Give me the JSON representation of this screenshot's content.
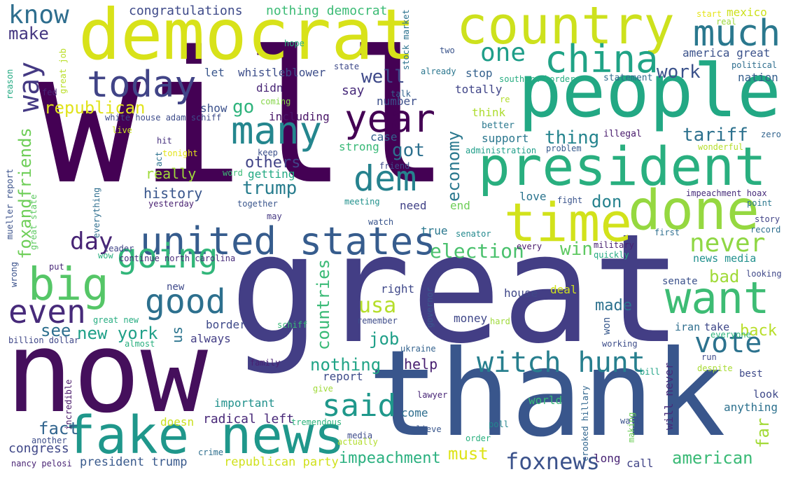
{
  "words": [
    {
      "text": "will",
      "color": "#440154"
    },
    {
      "text": "great",
      "color": "#433e85"
    },
    {
      "text": "now",
      "color": "#450f5c"
    },
    {
      "text": "thank",
      "color": "#39568c"
    },
    {
      "text": "people",
      "color": "#22a884"
    },
    {
      "text": "democrat",
      "color": "#d8e219"
    },
    {
      "text": "president",
      "color": "#29af7f"
    },
    {
      "text": "country",
      "color": "#cde11d"
    },
    {
      "text": "fake news",
      "color": "#1f978b"
    },
    {
      "text": "done",
      "color": "#95d840"
    },
    {
      "text": "time",
      "color": "#d2e21b"
    },
    {
      "text": "united states",
      "color": "#365c8d"
    },
    {
      "text": "want",
      "color": "#3dbc74"
    },
    {
      "text": "big",
      "color": "#55c667"
    },
    {
      "text": "china",
      "color": "#20a386"
    },
    {
      "text": "much",
      "color": "#2a788e"
    },
    {
      "text": "year",
      "color": "#440154"
    },
    {
      "text": "today",
      "color": "#414487"
    },
    {
      "text": "many",
      "color": "#24868e"
    },
    {
      "text": "dem",
      "color": "#26828e"
    },
    {
      "text": "going",
      "color": "#32b67a"
    },
    {
      "text": "good",
      "color": "#2d708e"
    },
    {
      "text": "witch hunt",
      "color": "#277f8e"
    },
    {
      "text": "even",
      "color": "#472a7a"
    },
    {
      "text": "said",
      "color": "#1f988b"
    },
    {
      "text": "vote",
      "color": "#2c728e"
    },
    {
      "text": "one",
      "color": "#1f9e89"
    },
    {
      "text": "way",
      "color": "#443983"
    },
    {
      "text": "know",
      "color": "#2e6e8e"
    },
    {
      "text": "never",
      "color": "#8fd744"
    },
    {
      "text": "day",
      "color": "#482475"
    },
    {
      "text": "foxnews",
      "color": "#3b528b"
    },
    {
      "text": "usa",
      "color": "#b5de2b"
    },
    {
      "text": "election",
      "color": "#4ac16d"
    },
    {
      "text": "make",
      "color": "#453781"
    },
    {
      "text": "congratulations",
      "color": "#3e4a89"
    },
    {
      "text": "nothing democrat",
      "color": "#3bbb75"
    },
    {
      "text": "republican",
      "color": "#e1e31d"
    },
    {
      "text": "well",
      "color": "#3e4989"
    },
    {
      "text": "go",
      "color": "#2eb37c"
    },
    {
      "text": "thing",
      "color": "#25848e"
    },
    {
      "text": "tariff",
      "color": "#2d718e"
    },
    {
      "text": "work",
      "color": "#3b528b"
    },
    {
      "text": "got",
      "color": "#2d708e"
    },
    {
      "text": "economy",
      "color": "#2a788e"
    },
    {
      "text": "trump",
      "color": "#287d8e"
    },
    {
      "text": "foxandfriends",
      "color": "#6ece58"
    },
    {
      "text": "don",
      "color": "#26828e"
    },
    {
      "text": "win",
      "color": "#5ec962"
    },
    {
      "text": "others",
      "color": "#414487"
    },
    {
      "text": "history",
      "color": "#39568c"
    },
    {
      "text": "really",
      "color": "#9fda3a"
    },
    {
      "text": "new york",
      "color": "#1fa088"
    },
    {
      "text": "see",
      "color": "#2e6f8e"
    },
    {
      "text": "countries",
      "color": "#3aba76"
    },
    {
      "text": "job",
      "color": "#1f9f88"
    },
    {
      "text": "bad",
      "color": "#a0da39"
    },
    {
      "text": "made",
      "color": "#2d718e"
    },
    {
      "text": "back",
      "color": "#b8de29"
    },
    {
      "text": "nothing",
      "color": "#20a486"
    },
    {
      "text": "help",
      "color": "#482071"
    },
    {
      "text": "fact",
      "color": "#32658e"
    },
    {
      "text": "radical left",
      "color": "#482878"
    },
    {
      "text": "must",
      "color": "#dde318"
    },
    {
      "text": "impeachment",
      "color": "#2ab07f"
    },
    {
      "text": "american",
      "color": "#3aba76"
    },
    {
      "text": "far",
      "color": "#a2da37"
    },
    {
      "text": "congress",
      "color": "#3f4788"
    },
    {
      "text": "president trump",
      "color": "#38598c"
    },
    {
      "text": "republican party",
      "color": "#d0e11c"
    },
    {
      "text": "america great",
      "color": "#3b528b"
    },
    {
      "text": "mexico",
      "color": "#cde11d"
    },
    {
      "text": "nation",
      "color": "#355f8d"
    },
    {
      "text": "stop",
      "color": "#34618d"
    },
    {
      "text": "totally",
      "color": "#404588"
    },
    {
      "text": "statement",
      "color": "#2f6c8e"
    },
    {
      "text": "whistleblower",
      "color": "#3d4e8a"
    },
    {
      "text": "let",
      "color": "#39568c"
    },
    {
      "text": "didn",
      "color": "#482576"
    },
    {
      "text": "say",
      "color": "#472a7a"
    },
    {
      "text": "including",
      "color": "#481467"
    },
    {
      "text": "show",
      "color": "#3b518b"
    },
    {
      "text": "number",
      "color": "#3c4f8a"
    },
    {
      "text": "case",
      "color": "#34618d"
    },
    {
      "text": "strong",
      "color": "#38b977"
    },
    {
      "text": "think",
      "color": "#addc30"
    },
    {
      "text": "support",
      "color": "#2a778e"
    },
    {
      "text": "illegal",
      "color": "#481a6c"
    },
    {
      "text": "better",
      "color": "#2a788e"
    },
    {
      "text": "administration",
      "color": "#1f9e89"
    },
    {
      "text": "problem",
      "color": "#375b8d"
    },
    {
      "text": "wonderful",
      "color": "#b5de2b"
    },
    {
      "text": "zero",
      "color": "#32648e"
    },
    {
      "text": "white house adam schiff",
      "color": "#3e4c8a"
    },
    {
      "text": "coming",
      "color": "#86d549"
    },
    {
      "text": "talk",
      "color": "#33628d"
    },
    {
      "text": "already",
      "color": "#2a768e"
    },
    {
      "text": "two",
      "color": "#3a548c"
    },
    {
      "text": "hope",
      "color": "#2cb17e"
    },
    {
      "text": "state",
      "color": "#3e4a89"
    },
    {
      "text": "stock market",
      "color": "#2c728e"
    },
    {
      "text": "southern border",
      "color": "#27ad81"
    },
    {
      "text": "political",
      "color": "#2e6e8e"
    },
    {
      "text": "real",
      "color": "#9dd93b"
    },
    {
      "text": "start",
      "color": "#e5e419"
    },
    {
      "text": "reason",
      "color": "#24aa83"
    },
    {
      "text": "fed",
      "color": "#482677"
    },
    {
      "text": "great job",
      "color": "#bade28"
    },
    {
      "text": "re",
      "color": "#b2dd2d"
    },
    {
      "text": "hit",
      "color": "#46307e"
    },
    {
      "text": "live",
      "color": "#c8e020"
    },
    {
      "text": "tonight",
      "color": "#e2e418"
    },
    {
      "text": "act",
      "color": "#2c728e"
    },
    {
      "text": "keep",
      "color": "#3c508b"
    },
    {
      "text": "friend",
      "color": "#3e4a89"
    },
    {
      "text": "word",
      "color": "#3bbb75"
    },
    {
      "text": "getting",
      "color": "#23a983"
    },
    {
      "text": "together",
      "color": "#39558c"
    },
    {
      "text": "meeting",
      "color": "#21918c"
    },
    {
      "text": "watch",
      "color": "#39558c"
    },
    {
      "text": "may",
      "color": "#453882"
    },
    {
      "text": "need",
      "color": "#414287"
    },
    {
      "text": "end",
      "color": "#6ece58"
    },
    {
      "text": "true",
      "color": "#2a778e"
    },
    {
      "text": "senator",
      "color": "#23898e"
    },
    {
      "text": "every",
      "color": "#481769"
    },
    {
      "text": "love",
      "color": "#2b748e"
    },
    {
      "text": "fight",
      "color": "#3a548c"
    },
    {
      "text": "impeachment hoax",
      "color": "#472d7b"
    },
    {
      "text": "point",
      "color": "#2a788e"
    },
    {
      "text": "story",
      "color": "#414487"
    },
    {
      "text": "record",
      "color": "#2d708e"
    },
    {
      "text": "first",
      "color": "#2e6e8e"
    },
    {
      "text": "military",
      "color": "#482071"
    },
    {
      "text": "quickly",
      "color": "#25ab82"
    },
    {
      "text": "news media",
      "color": "#21908d"
    },
    {
      "text": "looking",
      "color": "#3f4889"
    },
    {
      "text": "senate",
      "color": "#3b518b"
    },
    {
      "text": "deal",
      "color": "#cfe11c"
    },
    {
      "text": "house",
      "color": "#3f4788"
    },
    {
      "text": "right",
      "color": "#3f4889"
    },
    {
      "text": "remember",
      "color": "#3e4c8a"
    },
    {
      "text": "governor",
      "color": "#39568c"
    },
    {
      "text": "money",
      "color": "#3f4788"
    },
    {
      "text": "hard",
      "color": "#9fda3a"
    },
    {
      "text": "won",
      "color": "#38598c"
    },
    {
      "text": "iran",
      "color": "#2e6e8e"
    },
    {
      "text": "take",
      "color": "#3f4889"
    },
    {
      "text": "everyone",
      "color": "#2eb37c"
    },
    {
      "text": "working",
      "color": "#3d4d8a"
    },
    {
      "text": "run",
      "color": "#3e4989"
    },
    {
      "text": "bill",
      "color": "#20a386"
    },
    {
      "text": "despite",
      "color": "#a8db34"
    },
    {
      "text": "best",
      "color": "#3e4989"
    },
    {
      "text": "will never",
      "color": "#472c7a"
    },
    {
      "text": "look",
      "color": "#3e4989"
    },
    {
      "text": "anything",
      "color": "#2d718e"
    },
    {
      "text": "wall",
      "color": "#3b528b"
    },
    {
      "text": "crooked hillary",
      "color": "#31668e"
    },
    {
      "text": "making",
      "color": "#6ece58"
    },
    {
      "text": "world",
      "color": "#38b977"
    },
    {
      "text": "poll",
      "color": "#24878e"
    },
    {
      "text": "order",
      "color": "#2ab07f"
    },
    {
      "text": "lawyer",
      "color": "#482677"
    },
    {
      "text": "come",
      "color": "#2e6e8e"
    },
    {
      "text": "believe",
      "color": "#39568c"
    },
    {
      "text": "give",
      "color": "#a0da39"
    },
    {
      "text": "report",
      "color": "#3e4c8a"
    },
    {
      "text": "tremendous",
      "color": "#2eb37c"
    },
    {
      "text": "media",
      "color": "#3e4c8a"
    },
    {
      "text": "actually",
      "color": "#b2dd2d"
    },
    {
      "text": "ukraine",
      "color": "#33628d"
    },
    {
      "text": "family",
      "color": "#482071"
    },
    {
      "text": "important",
      "color": "#21918c"
    },
    {
      "text": "doesn",
      "color": "#cae11f"
    },
    {
      "text": "call",
      "color": "#414487"
    },
    {
      "text": "long",
      "color": "#482374"
    },
    {
      "text": "crime",
      "color": "#2e6f8e"
    },
    {
      "text": "nancy pelosi",
      "color": "#482374"
    },
    {
      "text": "another",
      "color": "#3d4d8a"
    },
    {
      "text": "incredible",
      "color": "#481769"
    },
    {
      "text": "billion dollar",
      "color": "#3f4788"
    },
    {
      "text": "great new",
      "color": "#27ad81"
    },
    {
      "text": "almost",
      "color": "#2ab07f"
    },
    {
      "text": "always",
      "color": "#433e85"
    },
    {
      "text": "border",
      "color": "#3e4989"
    },
    {
      "text": "schiff",
      "color": "#38b977"
    },
    {
      "text": "us",
      "color": "#2b748e"
    },
    {
      "text": "new",
      "color": "#3e4989"
    },
    {
      "text": "continue north carolina",
      "color": "#472c7a"
    },
    {
      "text": "wow",
      "color": "#2ab07f"
    },
    {
      "text": "leader",
      "color": "#414487"
    },
    {
      "text": "put",
      "color": "#482878"
    },
    {
      "text": "wrong",
      "color": "#3b528b"
    },
    {
      "text": "great state",
      "color": "#5ec962"
    },
    {
      "text": "mueller report",
      "color": "#3b528b"
    },
    {
      "text": "everything",
      "color": "#2e6e8e"
    },
    {
      "text": "yesterday",
      "color": "#482071"
    }
  ]
}
